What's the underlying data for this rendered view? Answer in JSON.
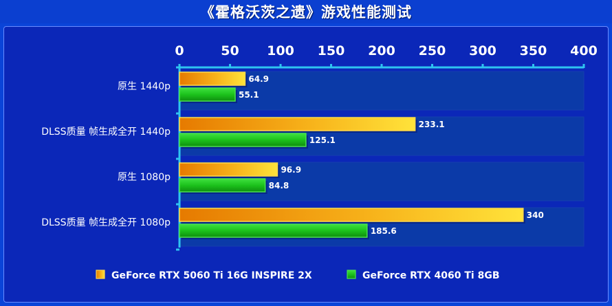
{
  "title": "《霍格沃茨之遗》游戏性能测试",
  "colors": {
    "background": "#0a44d8",
    "plot_band": "#0b3aa8",
    "axis": "#2fc4f0",
    "series1": "#f5b400",
    "series2": "#1ec81e"
  },
  "chart_data": {
    "type": "bar",
    "orientation": "horizontal",
    "categories": [
      "原生 1440p",
      "DLSS质量 帧生成全开 1440p",
      "原生 1080p",
      "DLSS质量 帧生成全开 1080p"
    ],
    "series": [
      {
        "name": "GeForce RTX 5060 Ti 16G INSPIRE 2X",
        "values": [
          64.9,
          233.1,
          96.9,
          340
        ]
      },
      {
        "name": "GeForce RTX 4060 Ti 8GB",
        "values": [
          55.1,
          125.1,
          84.8,
          185.6
        ]
      }
    ],
    "value_labels": [
      [
        "64.9",
        "233.1",
        "96.9",
        "340"
      ],
      [
        "55.1",
        "125.1",
        "84.8",
        "185.6"
      ]
    ],
    "xlim": [
      0,
      400
    ],
    "xticks": [
      "0",
      "50",
      "100",
      "150",
      "200",
      "250",
      "300",
      "350",
      "400"
    ],
    "xaxis_position": "top",
    "legend_position": "bottom",
    "grid": false
  }
}
